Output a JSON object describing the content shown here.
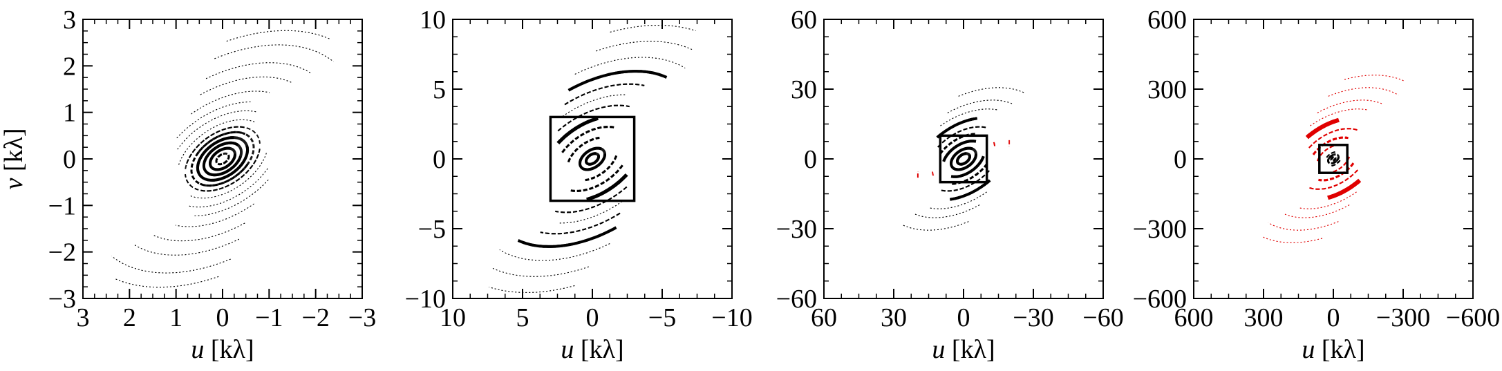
{
  "colors": {
    "foreground": "#000000",
    "highlight": "#e00000",
    "background": "#ffffff"
  },
  "chart_data": [
    {
      "type": "scatter",
      "title": "",
      "xlabel": "u [kλ]",
      "ylabel": "v [kλ]",
      "xlim": [
        3,
        -3
      ],
      "ylim": [
        -3,
        3
      ],
      "xticks": [
        3,
        2,
        1,
        0,
        -1,
        -2,
        -3
      ],
      "yticks": [
        -3,
        -2,
        -1,
        0,
        1,
        2,
        3
      ],
      "xtick_labels": [
        "3",
        "2",
        "1",
        "0",
        "−1",
        "−2",
        "−3"
      ],
      "ytick_labels": [
        "−3",
        "−2",
        "−1",
        "0",
        "1",
        "2",
        "3"
      ],
      "ylabel_shown": true,
      "zoom_box": null,
      "series": [
        {
          "color": "#000000",
          "arcs": [
            {
              "r": 0.15,
              "a0": 0,
              "a1": 300,
              "w": 3
            },
            {
              "r": 0.3,
              "a0": 20,
              "a1": 330,
              "w": 4
            },
            {
              "r": 0.45,
              "a0": 40,
              "a1": 350,
              "w": 4
            },
            {
              "r": 0.6,
              "a0": 10,
              "a1": 320,
              "w": 4
            },
            {
              "r": 0.75,
              "a0": 60,
              "a1": 340,
              "w": 3
            },
            {
              "r": 0.9,
              "a0": 30,
              "a1": 200,
              "w": 2
            },
            {
              "r": 0.9,
              "a0": 220,
              "a1": 330,
              "w": 2
            },
            {
              "r": 1.1,
              "a0": 40,
              "a1": 160,
              "w": 1
            },
            {
              "r": 1.1,
              "a0": 220,
              "a1": 340,
              "w": 1
            },
            {
              "r": 1.35,
              "a0": 60,
              "a1": 150,
              "w": 1
            },
            {
              "r": 1.35,
              "a0": 240,
              "a1": 330,
              "w": 1
            },
            {
              "r": 1.6,
              "a0": 70,
              "a1": 140,
              "w": 1
            },
            {
              "r": 1.6,
              "a0": 250,
              "a1": 320,
              "w": 1
            },
            {
              "r": 1.9,
              "a0": 90,
              "a1": 150,
              "w": 1
            },
            {
              "r": 1.9,
              "a0": 270,
              "a1": 330,
              "w": 1
            },
            {
              "r": 2.3,
              "a0": 100,
              "a1": 160,
              "w": 1
            },
            {
              "r": 2.3,
              "a0": 280,
              "a1": 340,
              "w": 1
            },
            {
              "r": 2.7,
              "a0": 105,
              "a1": 165,
              "w": 1
            },
            {
              "r": 2.7,
              "a0": 285,
              "a1": 345,
              "w": 1
            },
            {
              "r": 3.2,
              "a0": 110,
              "a1": 170,
              "w": 1
            },
            {
              "r": 3.2,
              "a0": 290,
              "a1": 350,
              "w": 1
            },
            {
              "r": 3.6,
              "a0": 115,
              "a1": 160,
              "w": 1
            },
            {
              "r": 3.6,
              "a0": 295,
              "a1": 340,
              "w": 1
            }
          ]
        }
      ]
    },
    {
      "type": "scatter",
      "title": "",
      "xlabel": "u [kλ]",
      "ylabel": "",
      "xlim": [
        10,
        -10
      ],
      "ylim": [
        -10,
        10
      ],
      "xticks": [
        10,
        5,
        0,
        -5,
        -10
      ],
      "yticks": [
        -10,
        -5,
        0,
        5,
        10
      ],
      "xtick_labels": [
        "10",
        "5",
        "0",
        "−5",
        "−10"
      ],
      "ytick_labels": [
        "−10",
        "−5",
        "0",
        "5",
        "10"
      ],
      "ylabel_shown": false,
      "zoom_box": [
        -3,
        3,
        -3,
        3
      ],
      "series": [
        {
          "color": "#000000",
          "arcs": [
            {
              "r": 0.5,
              "a0": 0,
              "a1": 330,
              "w": 4
            },
            {
              "r": 1.0,
              "a0": 20,
              "a1": 340,
              "w": 4
            },
            {
              "r": 2.0,
              "a0": 40,
              "a1": 130,
              "w": 3
            },
            {
              "r": 2.0,
              "a0": 220,
              "a1": 310,
              "w": 3
            },
            {
              "r": 3.0,
              "a0": 60,
              "a1": 150,
              "w": 3
            },
            {
              "r": 3.0,
              "a0": 240,
              "a1": 330,
              "w": 3
            },
            {
              "r": 4.0,
              "a0": 70,
              "a1": 120,
              "w": 5
            },
            {
              "r": 4.0,
              "a0": 250,
              "a1": 300,
              "w": 5
            },
            {
              "r": 5.0,
              "a0": 80,
              "a1": 150,
              "w": 2
            },
            {
              "r": 5.0,
              "a0": 260,
              "a1": 330,
              "w": 2
            },
            {
              "r": 6.0,
              "a0": 90,
              "a1": 140,
              "w": 1
            },
            {
              "r": 6.0,
              "a0": 270,
              "a1": 320,
              "w": 1
            },
            {
              "r": 7.0,
              "a0": 95,
              "a1": 150,
              "w": 2
            },
            {
              "r": 7.0,
              "a0": 275,
              "a1": 330,
              "w": 2
            },
            {
              "r": 8.2,
              "a0": 100,
              "a1": 160,
              "w": 4
            },
            {
              "r": 8.2,
              "a0": 280,
              "a1": 340,
              "w": 4
            },
            {
              "r": 9.5,
              "a0": 105,
              "a1": 165,
              "w": 1
            },
            {
              "r": 9.5,
              "a0": 285,
              "a1": 345,
              "w": 1
            },
            {
              "r": 11.0,
              "a0": 115,
              "a1": 160,
              "w": 1
            },
            {
              "r": 11.0,
              "a0": 295,
              "a1": 340,
              "w": 1
            },
            {
              "r": 12.5,
              "a0": 120,
              "a1": 155,
              "w": 1
            },
            {
              "r": 12.5,
              "a0": 300,
              "a1": 335,
              "w": 1
            }
          ]
        }
      ]
    },
    {
      "type": "scatter",
      "title": "",
      "xlabel": "u [kλ]",
      "ylabel": "",
      "xlim": [
        60,
        -60
      ],
      "ylim": [
        -60,
        60
      ],
      "xticks": [
        60,
        30,
        0,
        -30,
        -60
      ],
      "yticks": [
        -60,
        -30,
        0,
        30,
        60
      ],
      "xtick_labels": [
        "60",
        "30",
        "0",
        "−30",
        "−60"
      ],
      "ytick_labels": [
        "−60",
        "−30",
        "0",
        "30",
        "60"
      ],
      "ylabel_shown": false,
      "zoom_box": [
        -10,
        10,
        -10,
        10
      ],
      "series": [
        {
          "color": "#000000",
          "arcs": [
            {
              "r": 3,
              "a0": 0,
              "a1": 320,
              "w": 4
            },
            {
              "r": 6,
              "a0": 20,
              "a1": 340,
              "w": 4
            },
            {
              "r": 10,
              "a0": 40,
              "a1": 150,
              "w": 4
            },
            {
              "r": 10,
              "a0": 220,
              "a1": 330,
              "w": 4
            },
            {
              "r": 14,
              "a0": 60,
              "a1": 140,
              "w": 3
            },
            {
              "r": 14,
              "a0": 240,
              "a1": 320,
              "w": 3
            },
            {
              "r": 18,
              "a0": 70,
              "a1": 150,
              "w": 2
            },
            {
              "r": 18,
              "a0": 250,
              "a1": 330,
              "w": 2
            },
            {
              "r": 23,
              "a0": 80,
              "a1": 130,
              "w": 4
            },
            {
              "r": 23,
              "a0": 260,
              "a1": 310,
              "w": 4
            },
            {
              "r": 28,
              "a0": 90,
              "a1": 150,
              "w": 1
            },
            {
              "r": 28,
              "a0": 270,
              "a1": 330,
              "w": 1
            },
            {
              "r": 33,
              "a0": 100,
              "a1": 160,
              "w": 1
            },
            {
              "r": 33,
              "a0": 280,
              "a1": 340,
              "w": 1
            },
            {
              "r": 40,
              "a0": 110,
              "a1": 160,
              "w": 1
            },
            {
              "r": 40,
              "a0": 290,
              "a1": 340,
              "w": 1
            }
          ]
        },
        {
          "color": "#e00000",
          "arcs": [
            {
              "r": 15,
              "a0": 10,
              "a1": 20,
              "w": 2
            },
            {
              "r": 22,
              "a0": 200,
              "a1": 210,
              "w": 2
            }
          ]
        }
      ]
    },
    {
      "type": "scatter",
      "title": "",
      "xlabel": "u [kλ]",
      "ylabel": "",
      "xlim": [
        600,
        -600
      ],
      "ylim": [
        -600,
        600
      ],
      "xticks": [
        600,
        300,
        0,
        -300,
        -600
      ],
      "yticks": [
        -600,
        -300,
        0,
        300,
        600
      ],
      "xtick_labels": [
        "600",
        "300",
        "0",
        "−300",
        "−600"
      ],
      "ytick_labels": [
        "−600",
        "−300",
        "0",
        "300",
        "600"
      ],
      "ylabel_shown": false,
      "zoom_box": [
        -60,
        60,
        -60,
        60
      ],
      "series": [
        {
          "color": "#000000",
          "arcs": [
            {
              "r": 10,
              "a0": 0,
              "a1": 340,
              "w": 3
            },
            {
              "r": 25,
              "a0": 20,
              "a1": 320,
              "w": 3
            },
            {
              "r": 40,
              "a0": 60,
              "a1": 140,
              "w": 2
            },
            {
              "r": 40,
              "a0": 240,
              "a1": 320,
              "w": 2
            }
          ]
        },
        {
          "color": "#e00000",
          "arcs": [
            {
              "r": 80,
              "a0": 40,
              "a1": 140,
              "w": 2
            },
            {
              "r": 80,
              "a0": 220,
              "a1": 320,
              "w": 2
            },
            {
              "r": 120,
              "a0": 60,
              "a1": 150,
              "w": 3
            },
            {
              "r": 120,
              "a0": 240,
              "a1": 330,
              "w": 3
            },
            {
              "r": 170,
              "a0": 70,
              "a1": 160,
              "w": 2
            },
            {
              "r": 170,
              "a0": 250,
              "a1": 340,
              "w": 2
            },
            {
              "r": 230,
              "a0": 80,
              "a1": 120,
              "w": 6
            },
            {
              "r": 230,
              "a0": 260,
              "a1": 300,
              "w": 6
            },
            {
              "r": 280,
              "a0": 90,
              "a1": 150,
              "w": 1
            },
            {
              "r": 280,
              "a0": 270,
              "a1": 330,
              "w": 1
            },
            {
              "r": 330,
              "a0": 100,
              "a1": 160,
              "w": 1
            },
            {
              "r": 330,
              "a0": 280,
              "a1": 340,
              "w": 1
            },
            {
              "r": 400,
              "a0": 110,
              "a1": 165,
              "w": 1
            },
            {
              "r": 400,
              "a0": 290,
              "a1": 345,
              "w": 1
            },
            {
              "r": 470,
              "a0": 120,
              "a1": 160,
              "w": 1
            },
            {
              "r": 470,
              "a0": 300,
              "a1": 340,
              "w": 1
            }
          ]
        }
      ]
    }
  ]
}
